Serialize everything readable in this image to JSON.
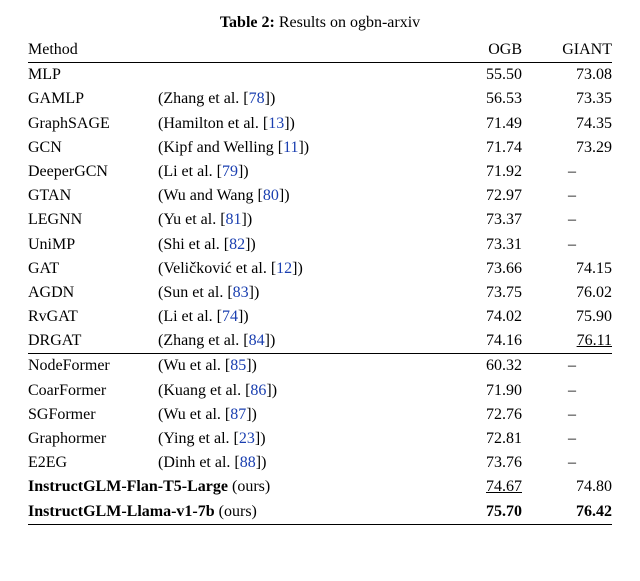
{
  "caption": {
    "label": "Table 2:",
    "text": "Results on ogbn-arxiv"
  },
  "columns": {
    "method": "Method",
    "ogb": "OGB",
    "giant": "GIANT"
  },
  "link_color": "#1a3fb0",
  "groups": [
    {
      "rows": [
        {
          "method": "MLP",
          "ref": "",
          "ogb": "55.50",
          "giant": "73.08"
        },
        {
          "method": "GAMLP",
          "ref": "(Zhang et al. [78])",
          "cite_num": "78",
          "ogb": "56.53",
          "giant": "73.35"
        },
        {
          "method": "GraphSAGE",
          "ref": "(Hamilton et al. [13])",
          "cite_num": "13",
          "ogb": "71.49",
          "giant": "74.35"
        },
        {
          "method": "GCN",
          "ref": "(Kipf and Welling [11])",
          "cite_num": "11",
          "ogb": "71.74",
          "giant": "73.29"
        },
        {
          "method": "DeeperGCN",
          "ref": "(Li et al. [79])",
          "cite_num": "79",
          "ogb": "71.92",
          "giant": "–"
        },
        {
          "method": "GTAN",
          "ref": "(Wu and Wang [80])",
          "cite_num": "80",
          "ogb": "72.97",
          "giant": "–"
        },
        {
          "method": "LEGNN",
          "ref": "(Yu et al. [81])",
          "cite_num": "81",
          "ogb": "73.37",
          "giant": "–"
        },
        {
          "method": "UniMP",
          "ref": "(Shi et al. [82])",
          "cite_num": "82",
          "ogb": "73.31",
          "giant": "–"
        },
        {
          "method": "GAT",
          "ref": "(Veličković et al. [12])",
          "cite_num": "12",
          "ogb": "73.66",
          "giant": "74.15"
        },
        {
          "method": "AGDN",
          "ref": "(Sun et al. [83])",
          "cite_num": "83",
          "ogb": "73.75",
          "giant": "76.02"
        },
        {
          "method": "RvGAT",
          "ref": "(Li et al. [74])",
          "cite_num": "74",
          "ogb": "74.02",
          "giant": "75.90"
        },
        {
          "method": "DRGAT",
          "ref": "(Zhang et al. [84])",
          "cite_num": "84",
          "ogb": "74.16",
          "giant": "76.11",
          "giant_underline": true
        }
      ]
    },
    {
      "rows": [
        {
          "method": "NodeFormer",
          "ref": "(Wu et al. [85])",
          "cite_num": "85",
          "ogb": "60.32",
          "giant": "–"
        },
        {
          "method": "CoarFormer",
          "ref": "(Kuang et al. [86])",
          "cite_num": "86",
          "ogb": "71.90",
          "giant": "–"
        },
        {
          "method": "SGFormer",
          "ref": "(Wu et al. [87])",
          "cite_num": "87",
          "ogb": "72.76",
          "giant": "–"
        },
        {
          "method": "Graphormer",
          "ref": "(Ying et al. [23])",
          "cite_num": "23",
          "ogb": "72.81",
          "giant": "–"
        },
        {
          "method": "E2EG",
          "ref": "(Dinh et al. [88])",
          "cite_num": "88",
          "ogb": "73.76",
          "giant": "–"
        },
        {
          "method": "InstructGLM-Flan-T5-Large",
          "ref": "(ours)",
          "bold": true,
          "ogb": "74.67",
          "ogb_underline": true,
          "giant": "74.80"
        },
        {
          "method": "InstructGLM-Llama-v1-7b",
          "ref": "(ours)",
          "bold": true,
          "ogb": "75.70",
          "ogb_bold": true,
          "giant": "76.42",
          "giant_bold": true
        }
      ]
    }
  ]
}
